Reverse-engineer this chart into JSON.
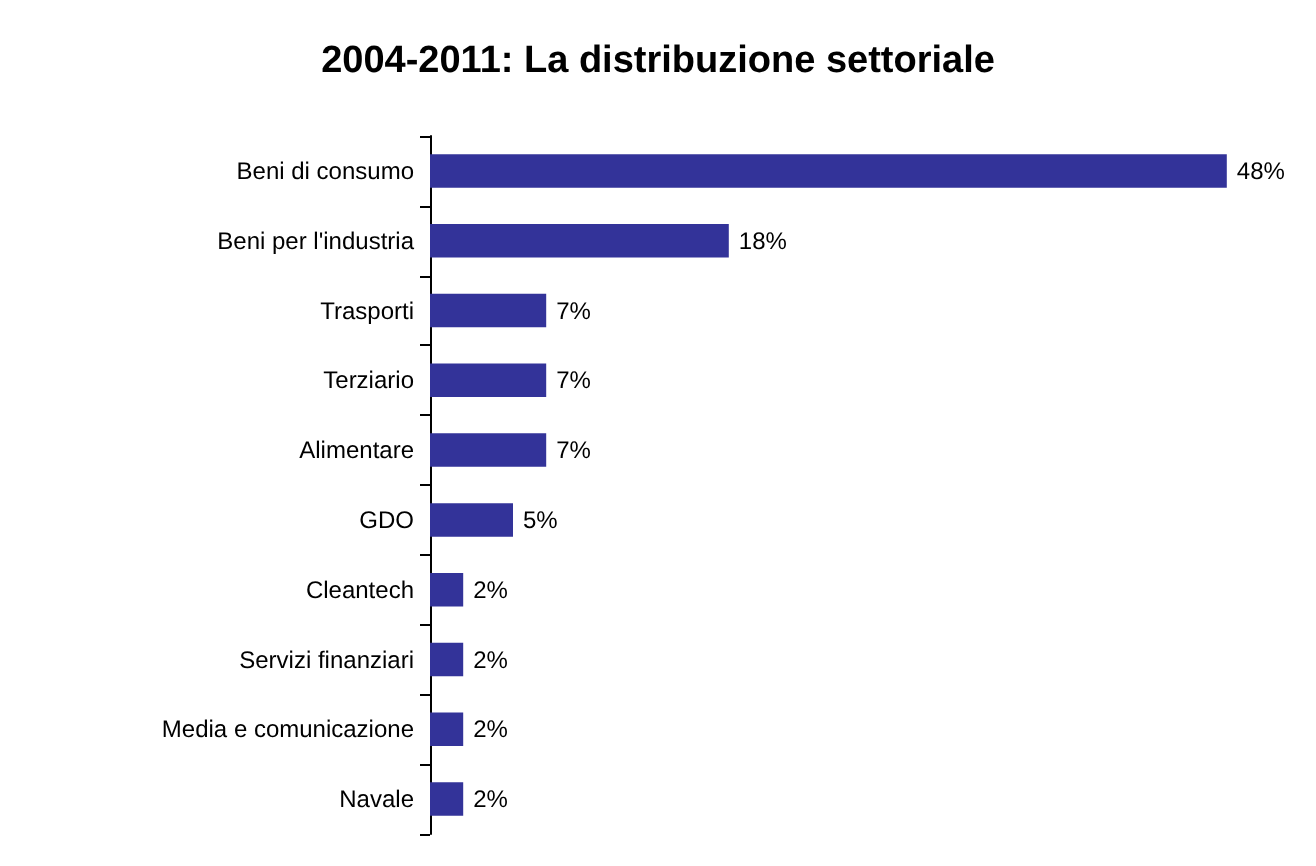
{
  "chart_data": {
    "type": "bar",
    "orientation": "horizontal",
    "title": "2004-2011: La distribuzione settoriale",
    "categories": [
      "Beni di consumo",
      "Beni per l'industria",
      "Trasporti",
      "Terziario",
      "Alimentare",
      "GDO",
      "Cleantech",
      "Servizi finanziari",
      "Media e comunicazione",
      "Navale"
    ],
    "values": [
      48,
      18,
      7,
      7,
      7,
      5,
      2,
      2,
      2,
      2
    ],
    "value_labels": [
      "48%",
      "18%",
      "7%",
      "7%",
      "7%",
      "5%",
      "2%",
      "2%",
      "2%",
      "2%"
    ],
    "color": "#333399",
    "tick_labels": "y"
  }
}
